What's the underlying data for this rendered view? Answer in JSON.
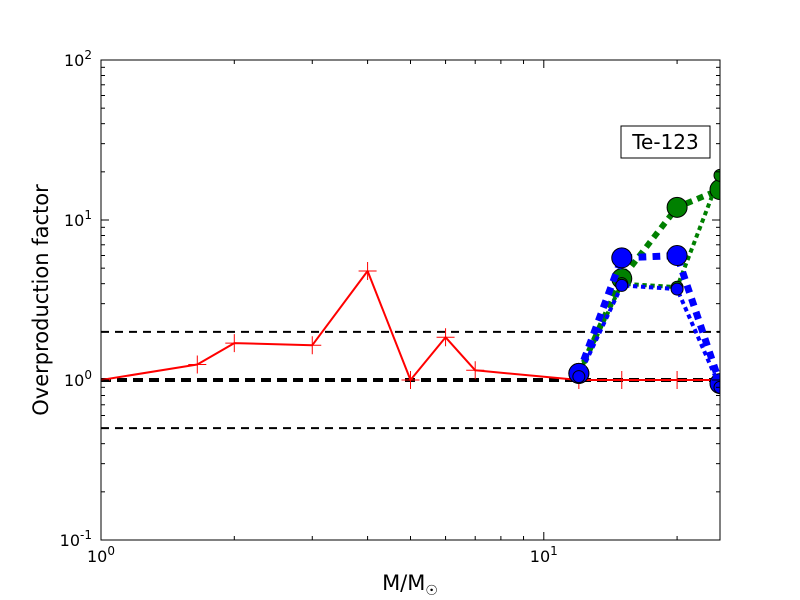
{
  "chart_data": {
    "type": "line",
    "xscale": "log",
    "yscale": "log",
    "xlim": [
      1,
      25
    ],
    "ylim": [
      0.1,
      100
    ],
    "xlabel": "M/M",
    "xlabel_sub": "☉",
    "ylabel": "Overproduction factor",
    "x_ticks": [
      {
        "base": "10",
        "exp": "0",
        "value": 1
      },
      {
        "base": "10",
        "exp": "1",
        "value": 10
      }
    ],
    "y_ticks": [
      {
        "base": "10",
        "exp": "-1",
        "value": 0.1
      },
      {
        "base": "10",
        "exp": "0",
        "value": 1
      },
      {
        "base": "10",
        "exp": "1",
        "value": 10
      },
      {
        "base": "10",
        "exp": "2",
        "value": 100
      }
    ],
    "annotation": "Te-123",
    "grid": false,
    "reference_lines": [
      {
        "y": 0.5,
        "style": "dashed",
        "weight": "thin"
      },
      {
        "y": 1.0,
        "style": "dashed",
        "weight": "thick"
      },
      {
        "y": 2.0,
        "style": "dashed",
        "weight": "thin"
      }
    ],
    "series": [
      {
        "color": "#ff0000",
        "style": "solid",
        "marker": "plus",
        "x": [
          1,
          1.65,
          2,
          3,
          4,
          5,
          6,
          7,
          12,
          15,
          20,
          25
        ],
        "y": [
          1.0,
          1.25,
          1.7,
          1.65,
          4.8,
          1.0,
          1.85,
          1.15,
          1.0,
          1.0,
          1.0,
          1.0
        ]
      },
      {
        "color": "#008000",
        "style": "dotted",
        "marker": "circle",
        "width": 6,
        "marker_size": 10,
        "x": [
          12,
          15,
          20,
          25
        ],
        "y": [
          1.1,
          4.3,
          12,
          15.5
        ]
      },
      {
        "color": "#008000",
        "style": "dotted",
        "marker": "circle",
        "width": 4,
        "marker_size": 6,
        "x": [
          12,
          15,
          20,
          25
        ],
        "y": [
          1.1,
          4.0,
          3.8,
          19
        ]
      },
      {
        "color": "#0000ff",
        "style": "dotted",
        "marker": "circle",
        "width": 7,
        "marker_size": 10,
        "x": [
          12,
          15,
          20,
          25
        ],
        "y": [
          1.1,
          5.8,
          6.0,
          0.95
        ]
      },
      {
        "color": "#0000ff",
        "style": "dotted",
        "marker": "circle",
        "width": 4,
        "marker_size": 6,
        "x": [
          12,
          15,
          20,
          25
        ],
        "y": [
          1.05,
          3.9,
          3.7,
          0.9
        ]
      }
    ]
  }
}
